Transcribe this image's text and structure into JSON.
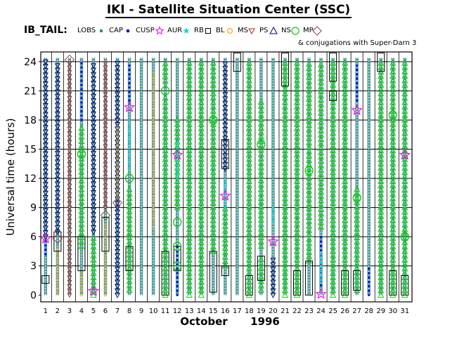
{
  "chart_data": {
    "type": "scatter",
    "title": "IKI - Satellite Situation Center (SSC)",
    "series_label": "IB_TAIL:",
    "legend": [
      {
        "label": "LOBS",
        "marker": "square-dot",
        "color": "#2e8b8b"
      },
      {
        "label": "CAP",
        "marker": "dot",
        "color": "#0000ee"
      },
      {
        "label": "CUSP",
        "marker": "star",
        "color": "#ee00ee"
      },
      {
        "label": "AUR",
        "marker": "star-small",
        "color": "#00dddd"
      },
      {
        "label": "RB",
        "marker": "square",
        "color": "#000000"
      },
      {
        "label": "BL",
        "marker": "circle-small",
        "color": "#ffaa00"
      },
      {
        "label": "MS",
        "marker": "triangle-down",
        "color": "#aa2222"
      },
      {
        "label": "PS",
        "marker": "triangle-up",
        "color": "#000066"
      },
      {
        "label": "NS",
        "marker": "circle",
        "color": "#00cc00"
      },
      {
        "label": "MP",
        "marker": "diamond",
        "color": "#884444"
      }
    ],
    "legend_note": "& conjugations with Super-Darn 3",
    "xlabel": "October",
    "xlabel_year": "1996",
    "ylabel": "Universal time (hours)",
    "x_ticks": [
      "1",
      "2",
      "3",
      "4",
      "5",
      "6",
      "7",
      "8",
      "9",
      "10",
      "11",
      "12",
      "13",
      "14",
      "15",
      "16",
      "17",
      "18",
      "19",
      "20",
      "21",
      "22",
      "23",
      "24",
      "25",
      "26",
      "27",
      "28",
      "29",
      "30",
      "31"
    ],
    "y_ticks": [
      0,
      3,
      6,
      9,
      12,
      15,
      18,
      21,
      24
    ],
    "xlim": [
      0.6,
      31.6
    ],
    "ylim": [
      -0.7,
      25
    ],
    "grid": true,
    "lobs_days": [
      1,
      2,
      3,
      4,
      5,
      6,
      7,
      8,
      9,
      10,
      11,
      12,
      13,
      14,
      15,
      16,
      17,
      18,
      19,
      20,
      21,
      22,
      23,
      24,
      25,
      26,
      27,
      28,
      29,
      30,
      31
    ],
    "segments": [
      {
        "day": 1,
        "type": "CAP",
        "start": 4.2,
        "end": 5.8
      },
      {
        "day": 1,
        "type": "PS",
        "start": 6.0,
        "end": 24.0
      },
      {
        "day": 2,
        "type": "BL",
        "start": 0.2,
        "end": 5.0
      },
      {
        "day": 2,
        "type": "PS",
        "start": 6.5,
        "end": 24.0
      },
      {
        "day": 3,
        "type": "MS",
        "start": 0.0,
        "end": 24.0
      },
      {
        "day": 4,
        "type": "NS",
        "start": 5.0,
        "end": 17.5
      },
      {
        "day": 4,
        "type": "BL",
        "start": 0.0,
        "end": 2.6
      },
      {
        "day": 4,
        "type": "CAP",
        "start": 18.0,
        "end": 24.0
      },
      {
        "day": 5,
        "type": "NS",
        "start": 0.0,
        "end": 6.2
      },
      {
        "day": 5,
        "type": "PS",
        "start": 6.5,
        "end": 24.0
      },
      {
        "day": 6,
        "type": "MS",
        "start": 9.0,
        "end": 24.0
      },
      {
        "day": 6,
        "type": "BL",
        "start": 0.0,
        "end": 7.5
      },
      {
        "day": 7,
        "type": "PS",
        "start": 0.0,
        "end": 24.0
      },
      {
        "day": 7,
        "type": "BL",
        "start": 10.0,
        "end": 17.5
      },
      {
        "day": 8,
        "type": "NS",
        "start": 0.5,
        "end": 11.0
      },
      {
        "day": 8,
        "type": "CAP",
        "start": 20.0,
        "end": 24.0
      },
      {
        "day": 8,
        "type": "AUR",
        "start": 13.0,
        "end": 18.0
      },
      {
        "day": 10,
        "type": "BL",
        "start": 7.0,
        "end": 23.0
      },
      {
        "day": 11,
        "type": "NS",
        "start": 0.0,
        "end": 20.5
      },
      {
        "day": 11,
        "type": "NS",
        "start": 22.0,
        "end": 24.0
      },
      {
        "day": 12,
        "type": "CAP",
        "start": 0.0,
        "end": 5.0
      },
      {
        "day": 12,
        "type": "NS",
        "start": 9.0,
        "end": 18.0
      },
      {
        "day": 12,
        "type": "AUR",
        "start": 12.0,
        "end": 16.0
      },
      {
        "day": 13,
        "type": "NS",
        "start": 0.0,
        "end": 24.0
      },
      {
        "day": 14,
        "type": "NS",
        "start": 0.0,
        "end": 24.0
      },
      {
        "day": 15,
        "type": "NS",
        "start": 4.5,
        "end": 24.0
      },
      {
        "day": 16,
        "type": "NS",
        "start": 3.0,
        "end": 9.0
      },
      {
        "day": 16,
        "type": "PS",
        "start": 13.0,
        "end": 24.0
      },
      {
        "day": 16,
        "type": "AUR",
        "start": 9.0,
        "end": 12.0
      },
      {
        "day": 18,
        "type": "NS",
        "start": 0.0,
        "end": 24.0
      },
      {
        "day": 19,
        "type": "NS",
        "start": 0.5,
        "end": 3.8
      },
      {
        "day": 19,
        "type": "NS",
        "start": 5.0,
        "end": 20.0
      },
      {
        "day": 20,
        "type": "PS",
        "start": 0.0,
        "end": 4.0
      },
      {
        "day": 20,
        "type": "AUR",
        "start": 7.5,
        "end": 9.5
      },
      {
        "day": 21,
        "type": "NS",
        "start": 0.0,
        "end": 24.0
      },
      {
        "day": 22,
        "type": "NS",
        "start": 0.0,
        "end": 24.0
      },
      {
        "day": 23,
        "type": "NS",
        "start": 3.5,
        "end": 24.0
      },
      {
        "day": 24,
        "type": "CAP",
        "start": 1.0,
        "end": 6.0
      },
      {
        "day": 24,
        "type": "AUR",
        "start": 1.5,
        "end": 4.5
      },
      {
        "day": 24,
        "type": "NS",
        "start": 7.0,
        "end": 24.0
      },
      {
        "day": 25,
        "type": "NS",
        "start": 0.0,
        "end": 24.0
      },
      {
        "day": 26,
        "type": "NS",
        "start": 0.0,
        "end": 24.0
      },
      {
        "day": 27,
        "type": "NS",
        "start": 0.5,
        "end": 11.0
      },
      {
        "day": 27,
        "type": "CAP",
        "start": 20.0,
        "end": 24.0
      },
      {
        "day": 28,
        "type": "CAP",
        "start": 0.0,
        "end": 3.0
      },
      {
        "day": 29,
        "type": "NS",
        "start": 0.0,
        "end": 24.0
      },
      {
        "day": 30,
        "type": "NS",
        "start": 0.0,
        "end": 24.0
      },
      {
        "day": 31,
        "type": "NS",
        "start": 0.0,
        "end": 24.0
      }
    ],
    "boxes": [
      {
        "day": 1,
        "start": 1.2,
        "end": 2.0
      },
      {
        "day": 2,
        "start": 4.5,
        "end": 6.5
      },
      {
        "day": 4,
        "start": 2.5,
        "end": 6.0
      },
      {
        "day": 6,
        "start": 4.5,
        "end": 8.0
      },
      {
        "day": 8,
        "start": 2.5,
        "end": 5.0
      },
      {
        "day": 11,
        "start": 0.0,
        "end": 4.5
      },
      {
        "day": 12,
        "start": 2.5,
        "end": 5.0
      },
      {
        "day": 15,
        "start": 0.3,
        "end": 4.5
      },
      {
        "day": 16,
        "start": 13.0,
        "end": 16.0
      },
      {
        "day": 16,
        "start": 2.0,
        "end": 3.0
      },
      {
        "day": 17,
        "start": 23.0,
        "end": 25.0
      },
      {
        "day": 18,
        "start": 0.0,
        "end": 2.0
      },
      {
        "day": 19,
        "start": 1.5,
        "end": 4.0
      },
      {
        "day": 21,
        "start": 21.5,
        "end": 25.0
      },
      {
        "day": 22,
        "start": 0.0,
        "end": 2.5
      },
      {
        "day": 23,
        "start": 0.0,
        "end": 3.5
      },
      {
        "day": 25,
        "start": 22.0,
        "end": 25.0
      },
      {
        "day": 25,
        "start": 20.0,
        "end": 21.0
      },
      {
        "day": 26,
        "start": 0.0,
        "end": 2.5
      },
      {
        "day": 27,
        "start": 0.5,
        "end": 2.5
      },
      {
        "day": 29,
        "start": 23.0,
        "end": 25.0
      },
      {
        "day": 30,
        "start": 0.0,
        "end": 2.5
      },
      {
        "day": 31,
        "start": 0.0,
        "end": 2.0
      }
    ],
    "circles": [
      {
        "day": 4,
        "y": 14.5
      },
      {
        "day": 8,
        "y": 12.0
      },
      {
        "day": 11,
        "y": 21.0
      },
      {
        "day": 12,
        "y": 5.0
      },
      {
        "day": 12,
        "y": 7.5
      },
      {
        "day": 12,
        "y": 3.0
      },
      {
        "day": 15,
        "y": 18.0
      },
      {
        "day": 19,
        "y": 15.5
      },
      {
        "day": 23,
        "y": 12.8
      },
      {
        "day": 27,
        "y": 10.0
      },
      {
        "day": 30,
        "y": 18.5
      },
      {
        "day": 31,
        "y": 6.0
      }
    ],
    "stars": [
      {
        "day": 1,
        "y": 5.8
      },
      {
        "day": 5,
        "y": 0.4
      },
      {
        "day": 8,
        "y": 19.3
      },
      {
        "day": 12,
        "y": 14.4
      },
      {
        "day": 16,
        "y": 10.2
      },
      {
        "day": 20,
        "y": 5.5
      },
      {
        "day": 24,
        "y": 0.1
      },
      {
        "day": 27,
        "y": 19.0
      },
      {
        "day": 31,
        "y": 14.4
      }
    ],
    "diamonds": [
      {
        "day": 2,
        "y": 5.8
      },
      {
        "day": 3,
        "y": 24.2
      },
      {
        "day": 6,
        "y": 8.2
      },
      {
        "day": 7,
        "y": 9.5
      }
    ]
  }
}
